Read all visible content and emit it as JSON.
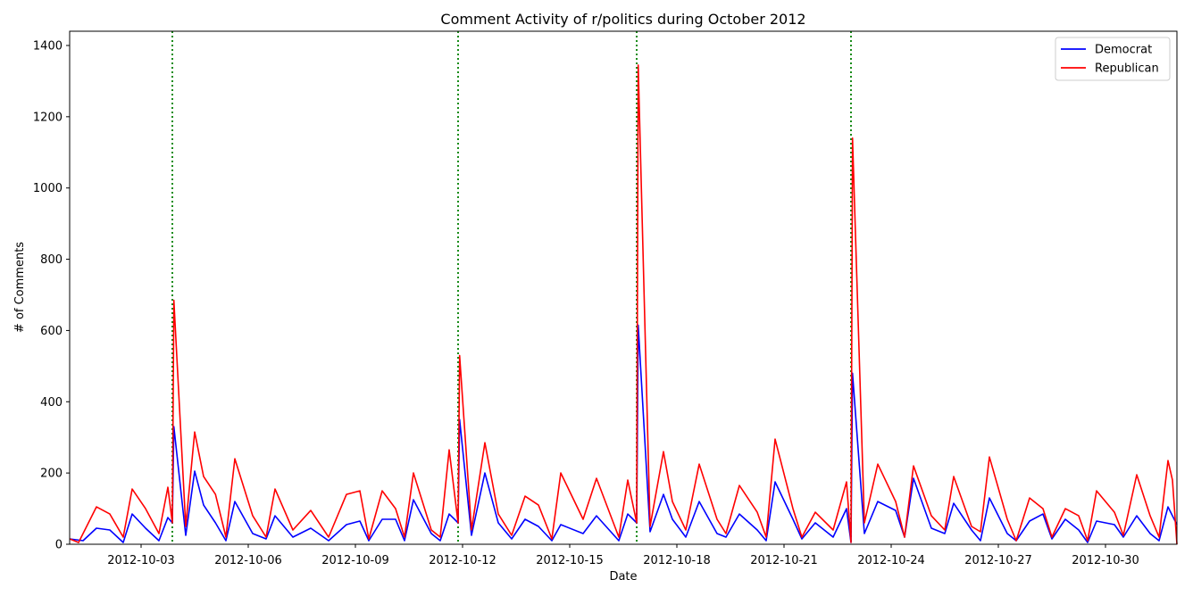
{
  "chart_data": {
    "type": "line",
    "title": "Comment Activity of r/politics during October 2012",
    "xlabel": "Date",
    "ylabel": "# of Comments",
    "xlim": [
      "2012-10-01",
      "2012-11-01"
    ],
    "ylim": [
      0,
      1440
    ],
    "x_ticks": [
      "2012-10-03",
      "2012-10-06",
      "2012-10-09",
      "2012-10-12",
      "2012-10-15",
      "2012-10-18",
      "2012-10-21",
      "2012-10-24",
      "2012-10-27",
      "2012-10-30"
    ],
    "y_ticks": [
      0,
      200,
      400,
      600,
      800,
      1000,
      1200,
      1400
    ],
    "grid": false,
    "legend_position": "top-right",
    "event_lines": [
      {
        "date": "2012-10-03 21:00",
        "color": "#008000"
      },
      {
        "date": "2012-10-11 21:00",
        "color": "#008000"
      },
      {
        "date": "2012-10-16 21:00",
        "color": "#008000"
      },
      {
        "date": "2012-10-22 21:00",
        "color": "#008000"
      }
    ],
    "series": [
      {
        "name": "Democrat",
        "color": "#0000ff",
        "points": [
          [
            "2012-10-01 00:00",
            15
          ],
          [
            "2012-10-01 09:00",
            10
          ],
          [
            "2012-10-01 18:00",
            45
          ],
          [
            "2012-10-02 03:00",
            40
          ],
          [
            "2012-10-02 12:00",
            5
          ],
          [
            "2012-10-02 18:00",
            85
          ],
          [
            "2012-10-03 03:00",
            45
          ],
          [
            "2012-10-03 12:00",
            10
          ],
          [
            "2012-10-03 18:00",
            75
          ],
          [
            "2012-10-03 21:00",
            60
          ],
          [
            "2012-10-03 22:00",
            330
          ],
          [
            "2012-10-04 06:00",
            25
          ],
          [
            "2012-10-04 12:00",
            205
          ],
          [
            "2012-10-04 18:00",
            110
          ],
          [
            "2012-10-05 02:00",
            60
          ],
          [
            "2012-10-05 09:00",
            10
          ],
          [
            "2012-10-05 15:00",
            120
          ],
          [
            "2012-10-06 03:00",
            30
          ],
          [
            "2012-10-06 12:00",
            15
          ],
          [
            "2012-10-06 18:00",
            80
          ],
          [
            "2012-10-07 06:00",
            20
          ],
          [
            "2012-10-07 18:00",
            45
          ],
          [
            "2012-10-08 06:00",
            10
          ],
          [
            "2012-10-08 18:00",
            55
          ],
          [
            "2012-10-09 03:00",
            65
          ],
          [
            "2012-10-09 09:00",
            10
          ],
          [
            "2012-10-09 18:00",
            70
          ],
          [
            "2012-10-10 03:00",
            70
          ],
          [
            "2012-10-10 09:00",
            10
          ],
          [
            "2012-10-10 15:00",
            125
          ],
          [
            "2012-10-11 03:00",
            30
          ],
          [
            "2012-10-11 09:00",
            10
          ],
          [
            "2012-10-11 15:00",
            85
          ],
          [
            "2012-10-11 21:00",
            60
          ],
          [
            "2012-10-11 22:00",
            350
          ],
          [
            "2012-10-12 06:00",
            25
          ],
          [
            "2012-10-12 15:00",
            200
          ],
          [
            "2012-10-13 00:00",
            60
          ],
          [
            "2012-10-13 09:00",
            15
          ],
          [
            "2012-10-13 18:00",
            70
          ],
          [
            "2012-10-14 03:00",
            50
          ],
          [
            "2012-10-14 12:00",
            10
          ],
          [
            "2012-10-14 18:00",
            55
          ],
          [
            "2012-10-15 09:00",
            30
          ],
          [
            "2012-10-15 18:00",
            80
          ],
          [
            "2012-10-16 09:00",
            10
          ],
          [
            "2012-10-16 15:00",
            85
          ],
          [
            "2012-10-16 21:00",
            60
          ],
          [
            "2012-10-16 22:00",
            615
          ],
          [
            "2012-10-17 06:00",
            35
          ],
          [
            "2012-10-17 15:00",
            140
          ],
          [
            "2012-10-17 21:00",
            70
          ],
          [
            "2012-10-18 06:00",
            20
          ],
          [
            "2012-10-18 15:00",
            120
          ],
          [
            "2012-10-19 03:00",
            30
          ],
          [
            "2012-10-19 09:00",
            20
          ],
          [
            "2012-10-19 18:00",
            85
          ],
          [
            "2012-10-20 06:00",
            40
          ],
          [
            "2012-10-20 12:00",
            10
          ],
          [
            "2012-10-20 18:00",
            175
          ],
          [
            "2012-10-21 06:00",
            70
          ],
          [
            "2012-10-21 12:00",
            15
          ],
          [
            "2012-10-21 21:00",
            60
          ],
          [
            "2012-10-22 09:00",
            20
          ],
          [
            "2012-10-22 18:00",
            100
          ],
          [
            "2012-10-22 21:00",
            5
          ],
          [
            "2012-10-22 22:00",
            480
          ],
          [
            "2012-10-23 06:00",
            30
          ],
          [
            "2012-10-23 15:00",
            120
          ],
          [
            "2012-10-24 03:00",
            95
          ],
          [
            "2012-10-24 09:00",
            20
          ],
          [
            "2012-10-24 15:00",
            185
          ],
          [
            "2012-10-25 03:00",
            45
          ],
          [
            "2012-10-25 12:00",
            30
          ],
          [
            "2012-10-25 18:00",
            115
          ],
          [
            "2012-10-26 06:00",
            40
          ],
          [
            "2012-10-26 12:00",
            10
          ],
          [
            "2012-10-26 18:00",
            130
          ],
          [
            "2012-10-27 06:00",
            30
          ],
          [
            "2012-10-27 12:00",
            10
          ],
          [
            "2012-10-27 21:00",
            65
          ],
          [
            "2012-10-28 06:00",
            85
          ],
          [
            "2012-10-28 12:00",
            15
          ],
          [
            "2012-10-28 21:00",
            70
          ],
          [
            "2012-10-29 06:00",
            40
          ],
          [
            "2012-10-29 12:00",
            5
          ],
          [
            "2012-10-29 18:00",
            65
          ],
          [
            "2012-10-30 06:00",
            55
          ],
          [
            "2012-10-30 12:00",
            20
          ],
          [
            "2012-10-30 21:00",
            80
          ],
          [
            "2012-10-31 06:00",
            30
          ],
          [
            "2012-10-31 12:00",
            10
          ],
          [
            "2012-10-31 18:00",
            105
          ],
          [
            "2012-10-31 21:00",
            80
          ],
          [
            "2012-11-01 00:00",
            55
          ]
        ]
      },
      {
        "name": "Republican",
        "color": "#ff0000",
        "points": [
          [
            "2012-10-01 00:00",
            15
          ],
          [
            "2012-10-01 06:00",
            5
          ],
          [
            "2012-10-01 18:00",
            105
          ],
          [
            "2012-10-02 03:00",
            85
          ],
          [
            "2012-10-02 12:00",
            20
          ],
          [
            "2012-10-02 18:00",
            155
          ],
          [
            "2012-10-03 03:00",
            100
          ],
          [
            "2012-10-03 12:00",
            30
          ],
          [
            "2012-10-03 18:00",
            160
          ],
          [
            "2012-10-03 21:00",
            60
          ],
          [
            "2012-10-03 22:00",
            685
          ],
          [
            "2012-10-04 06:00",
            50
          ],
          [
            "2012-10-04 12:00",
            315
          ],
          [
            "2012-10-04 18:00",
            190
          ],
          [
            "2012-10-05 02:00",
            140
          ],
          [
            "2012-10-05 09:00",
            20
          ],
          [
            "2012-10-05 15:00",
            240
          ],
          [
            "2012-10-06 03:00",
            80
          ],
          [
            "2012-10-06 12:00",
            20
          ],
          [
            "2012-10-06 18:00",
            155
          ],
          [
            "2012-10-07 06:00",
            40
          ],
          [
            "2012-10-07 18:00",
            95
          ],
          [
            "2012-10-08 06:00",
            20
          ],
          [
            "2012-10-08 18:00",
            140
          ],
          [
            "2012-10-09 03:00",
            150
          ],
          [
            "2012-10-09 09:00",
            15
          ],
          [
            "2012-10-09 18:00",
            150
          ],
          [
            "2012-10-10 03:00",
            100
          ],
          [
            "2012-10-10 09:00",
            20
          ],
          [
            "2012-10-10 15:00",
            200
          ],
          [
            "2012-10-11 03:00",
            40
          ],
          [
            "2012-10-11 09:00",
            20
          ],
          [
            "2012-10-11 15:00",
            265
          ],
          [
            "2012-10-11 21:00",
            60
          ],
          [
            "2012-10-11 22:00",
            530
          ],
          [
            "2012-10-12 06:00",
            40
          ],
          [
            "2012-10-12 15:00",
            285
          ],
          [
            "2012-10-13 00:00",
            85
          ],
          [
            "2012-10-13 09:00",
            25
          ],
          [
            "2012-10-13 18:00",
            135
          ],
          [
            "2012-10-14 03:00",
            110
          ],
          [
            "2012-10-14 12:00",
            15
          ],
          [
            "2012-10-14 18:00",
            200
          ],
          [
            "2012-10-15 09:00",
            70
          ],
          [
            "2012-10-15 18:00",
            185
          ],
          [
            "2012-10-16 09:00",
            20
          ],
          [
            "2012-10-16 15:00",
            180
          ],
          [
            "2012-10-16 21:00",
            60
          ],
          [
            "2012-10-16 22:00",
            1345
          ],
          [
            "2012-10-17 06:00",
            50
          ],
          [
            "2012-10-17 15:00",
            260
          ],
          [
            "2012-10-17 21:00",
            120
          ],
          [
            "2012-10-18 06:00",
            40
          ],
          [
            "2012-10-18 15:00",
            225
          ],
          [
            "2012-10-19 03:00",
            70
          ],
          [
            "2012-10-19 09:00",
            30
          ],
          [
            "2012-10-19 18:00",
            165
          ],
          [
            "2012-10-20 06:00",
            90
          ],
          [
            "2012-10-20 12:00",
            20
          ],
          [
            "2012-10-20 18:00",
            295
          ],
          [
            "2012-10-21 06:00",
            100
          ],
          [
            "2012-10-21 12:00",
            20
          ],
          [
            "2012-10-21 21:00",
            90
          ],
          [
            "2012-10-22 09:00",
            40
          ],
          [
            "2012-10-22 18:00",
            175
          ],
          [
            "2012-10-22 21:00",
            5
          ],
          [
            "2012-10-22 22:00",
            1140
          ],
          [
            "2012-10-23 06:00",
            60
          ],
          [
            "2012-10-23 15:00",
            225
          ],
          [
            "2012-10-24 03:00",
            120
          ],
          [
            "2012-10-24 09:00",
            20
          ],
          [
            "2012-10-24 15:00",
            220
          ],
          [
            "2012-10-25 03:00",
            80
          ],
          [
            "2012-10-25 12:00",
            40
          ],
          [
            "2012-10-25 18:00",
            190
          ],
          [
            "2012-10-26 06:00",
            50
          ],
          [
            "2012-10-26 12:00",
            35
          ],
          [
            "2012-10-26 18:00",
            245
          ],
          [
            "2012-10-27 06:00",
            70
          ],
          [
            "2012-10-27 12:00",
            10
          ],
          [
            "2012-10-27 21:00",
            130
          ],
          [
            "2012-10-28 06:00",
            100
          ],
          [
            "2012-10-28 12:00",
            20
          ],
          [
            "2012-10-28 21:00",
            100
          ],
          [
            "2012-10-29 06:00",
            80
          ],
          [
            "2012-10-29 12:00",
            10
          ],
          [
            "2012-10-29 18:00",
            150
          ],
          [
            "2012-10-30 06:00",
            90
          ],
          [
            "2012-10-30 12:00",
            25
          ],
          [
            "2012-10-30 21:00",
            195
          ],
          [
            "2012-10-31 06:00",
            80
          ],
          [
            "2012-10-31 12:00",
            20
          ],
          [
            "2012-10-31 18:00",
            235
          ],
          [
            "2012-10-31 21:00",
            180
          ],
          [
            "2012-11-01 00:00",
            0
          ]
        ]
      }
    ]
  }
}
